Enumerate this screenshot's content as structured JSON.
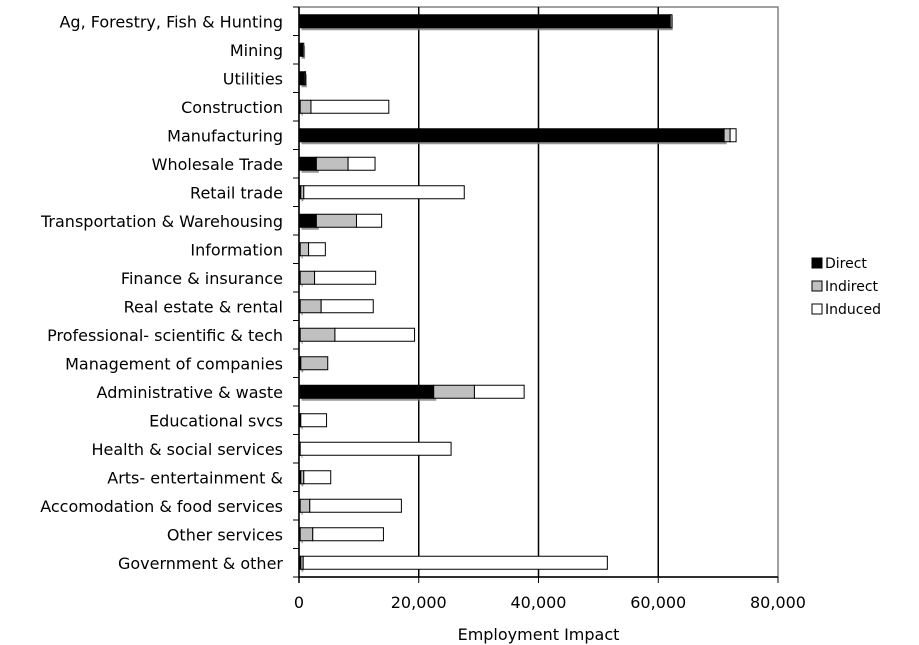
{
  "chart_data": {
    "type": "bar",
    "orientation": "horizontal",
    "stacked": true,
    "categories": [
      "Ag, Forestry, Fish & Hunting",
      "Mining",
      "Utilities",
      "Construction",
      "Manufacturing",
      "Wholesale Trade",
      "Retail trade",
      "Transportation & Warehousing",
      "Information",
      "Finance & insurance",
      "Real estate & rental",
      "Professional- scientific & tech",
      "Management of companies",
      "Administrative & waste",
      "Educational svcs",
      "Health & social services",
      "Arts- entertainment &",
      "Accomodation & food services",
      "Other services",
      "Government & other"
    ],
    "series": [
      {
        "name": "Direct",
        "color": "#000000",
        "values": [
          62000,
          600,
          900,
          200,
          71000,
          2900,
          300,
          2900,
          200,
          200,
          200,
          200,
          300,
          22500,
          200,
          100,
          300,
          200,
          200,
          300
        ]
      },
      {
        "name": "Indirect",
        "color": "#c0c0c0",
        "values": [
          300,
          200,
          200,
          1800,
          1000,
          5300,
          500,
          6700,
          1400,
          2400,
          3500,
          5800,
          4500,
          6800,
          100,
          100,
          500,
          1600,
          2100,
          400
        ]
      },
      {
        "name": "Induced",
        "color": "#ffffff",
        "values": [
          0,
          0,
          0,
          13000,
          1000,
          4500,
          26800,
          4200,
          2800,
          10200,
          8700,
          13300,
          0,
          8300,
          4300,
          25200,
          4500,
          15300,
          11800,
          50800
        ]
      }
    ],
    "xlabel": "Employment Impact",
    "xlim": [
      0,
      80000
    ],
    "xticks": [
      0,
      20000,
      40000,
      60000,
      80000
    ],
    "xtick_labels": [
      "0",
      "20,000",
      "40,000",
      "60,000",
      "80,000"
    ],
    "grid": true,
    "legend_position": "right"
  }
}
